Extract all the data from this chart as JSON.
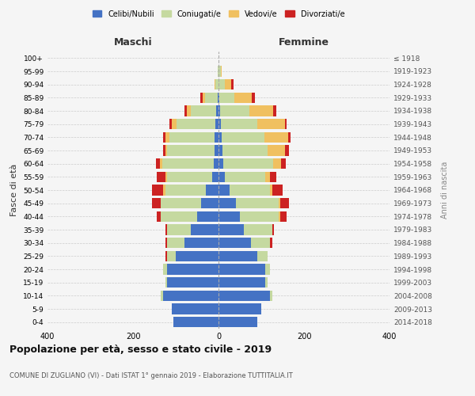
{
  "age_groups": [
    "0-4",
    "5-9",
    "10-14",
    "15-19",
    "20-24",
    "25-29",
    "30-34",
    "35-39",
    "40-44",
    "45-49",
    "50-54",
    "55-59",
    "60-64",
    "65-69",
    "70-74",
    "75-79",
    "80-84",
    "85-89",
    "90-94",
    "95-99",
    "100+"
  ],
  "birth_years": [
    "2014-2018",
    "2009-2013",
    "2004-2008",
    "1999-2003",
    "1994-1998",
    "1989-1993",
    "1984-1988",
    "1979-1983",
    "1974-1978",
    "1969-1973",
    "1964-1968",
    "1959-1963",
    "1954-1958",
    "1949-1953",
    "1944-1948",
    "1939-1943",
    "1934-1938",
    "1929-1933",
    "1924-1928",
    "1919-1923",
    "≤ 1918"
  ],
  "male": {
    "celibi": [
      105,
      110,
      130,
      120,
      120,
      100,
      80,
      65,
      50,
      40,
      30,
      15,
      12,
      10,
      10,
      8,
      5,
      2,
      0,
      0,
      0
    ],
    "coniugati": [
      0,
      0,
      5,
      5,
      10,
      20,
      40,
      55,
      85,
      95,
      95,
      105,
      120,
      110,
      105,
      90,
      60,
      30,
      8,
      2,
      0
    ],
    "vedovi": [
      0,
      0,
      0,
      0,
      0,
      0,
      0,
      0,
      0,
      0,
      5,
      5,
      5,
      5,
      10,
      12,
      10,
      5,
      2,
      0,
      0
    ],
    "divorziati": [
      0,
      0,
      0,
      0,
      0,
      5,
      5,
      5,
      10,
      20,
      25,
      20,
      10,
      5,
      5,
      5,
      5,
      5,
      0,
      0,
      0
    ]
  },
  "female": {
    "nubili": [
      90,
      100,
      120,
      110,
      110,
      90,
      75,
      60,
      50,
      40,
      25,
      15,
      12,
      10,
      8,
      5,
      3,
      2,
      0,
      0,
      0
    ],
    "coniugate": [
      0,
      0,
      5,
      5,
      10,
      25,
      45,
      65,
      90,
      100,
      95,
      95,
      115,
      105,
      100,
      85,
      70,
      35,
      15,
      5,
      0
    ],
    "vedove": [
      0,
      0,
      0,
      0,
      0,
      0,
      0,
      0,
      5,
      5,
      5,
      10,
      20,
      40,
      55,
      65,
      55,
      40,
      15,
      2,
      0
    ],
    "divorziate": [
      0,
      0,
      0,
      0,
      0,
      0,
      5,
      5,
      15,
      20,
      25,
      15,
      10,
      10,
      5,
      5,
      8,
      8,
      5,
      0,
      0
    ]
  },
  "colors": {
    "celibi": "#4472C4",
    "coniugati": "#c5d9a0",
    "vedovi": "#f0c060",
    "divorziati": "#cc2222"
  },
  "xlim": 400,
  "title": "Popolazione per età, sesso e stato civile - 2019",
  "subtitle": "COMUNE DI ZUGLIANO (VI) - Dati ISTAT 1° gennaio 2019 - Elaborazione TUTTITALIA.IT",
  "xlabel_left": "Maschi",
  "xlabel_right": "Femmine",
  "ylabel_left": "Fasce di età",
  "ylabel_right": "Anni di nascita",
  "legend_labels": [
    "Celibi/Nubili",
    "Coniugati/e",
    "Vedovi/e",
    "Divorziati/e"
  ],
  "background_color": "#f5f5f5"
}
